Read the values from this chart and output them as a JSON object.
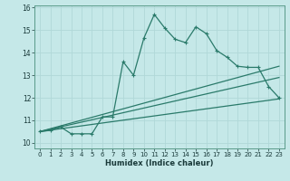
{
  "xlabel": "Humidex (Indice chaleur)",
  "bg_color": "#c5e8e8",
  "line_color": "#2a7a6a",
  "grid_color": "#b0d8d8",
  "xlim": [
    -0.5,
    23.5
  ],
  "ylim": [
    9.75,
    16.1
  ],
  "yticks": [
    10,
    11,
    12,
    13,
    14,
    15,
    16
  ],
  "xticks": [
    0,
    1,
    2,
    3,
    4,
    5,
    6,
    7,
    8,
    9,
    10,
    11,
    12,
    13,
    14,
    15,
    16,
    17,
    18,
    19,
    20,
    21,
    22,
    23
  ],
  "main_x": [
    0,
    1,
    2,
    3,
    4,
    5,
    6,
    7,
    8,
    9,
    10,
    11,
    12,
    13,
    14,
    15,
    16,
    17,
    18,
    19,
    20,
    21,
    22,
    23
  ],
  "main_y": [
    10.5,
    10.55,
    10.7,
    10.4,
    10.4,
    10.4,
    11.15,
    11.15,
    13.6,
    13.0,
    14.65,
    15.7,
    15.1,
    14.6,
    14.45,
    15.15,
    14.85,
    14.1,
    13.8,
    13.4,
    13.35,
    13.35,
    12.5,
    12.0
  ],
  "line1_x": [
    0,
    23
  ],
  "line1_y": [
    10.5,
    13.4
  ],
  "line2_x": [
    0,
    23
  ],
  "line2_y": [
    10.5,
    12.9
  ],
  "line3_x": [
    0,
    23
  ],
  "line3_y": [
    10.5,
    11.95
  ]
}
